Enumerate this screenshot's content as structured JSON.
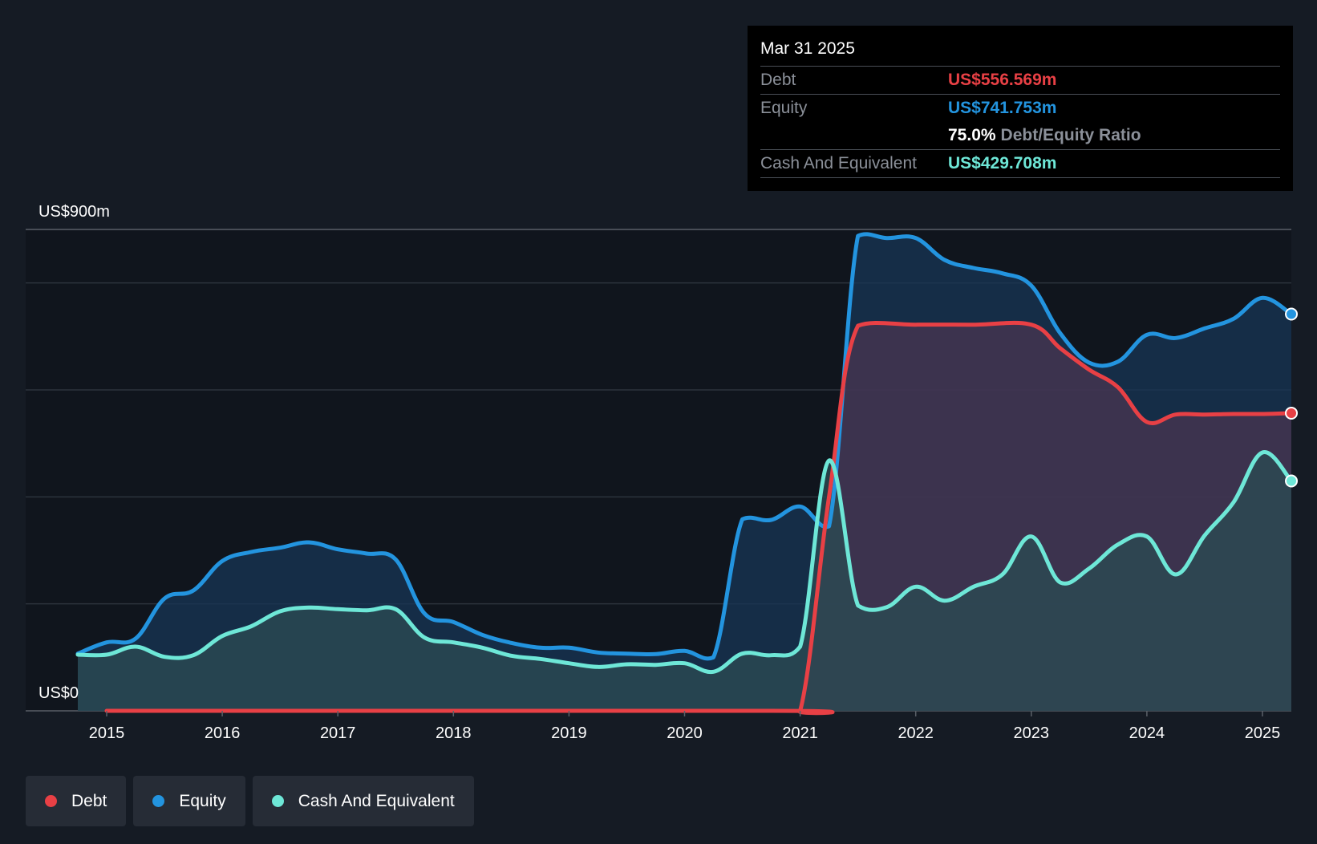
{
  "colors": {
    "background": "#151b24",
    "debt": "#e84045",
    "equity": "#2394df",
    "cash": "#6ee7d7"
  },
  "tooltip": {
    "date": "Mar 31 2025",
    "rows": [
      {
        "name": "Debt",
        "value": "US$556.569m"
      },
      {
        "name": "Equity",
        "value": "US$741.753m"
      }
    ],
    "ratio_value": "75.0%",
    "ratio_label": "Debt/Equity Ratio",
    "cash_name": "Cash And Equivalent",
    "cash_value": "US$429.708m"
  },
  "legend": [
    {
      "label": "Debt",
      "color": "#e84045"
    },
    {
      "label": "Equity",
      "color": "#2394df"
    },
    {
      "label": "Cash And Equivalent",
      "color": "#6ee7d7"
    }
  ],
  "chart_data": {
    "type": "area",
    "ylabel_top": "US$900m",
    "ylabel_bottom": "US$0",
    "ylim": [
      0,
      900
    ],
    "xlim": [
      2014.7,
      2025.25
    ],
    "x_ticks": [
      2015,
      2016,
      2017,
      2018,
      2019,
      2020,
      2021,
      2022,
      2023,
      2024,
      2025
    ],
    "x_tick_labels": [
      "2015",
      "2016",
      "2017",
      "2018",
      "2019",
      "2020",
      "2021",
      "2022",
      "2023",
      "2024",
      "2025"
    ],
    "gridlines": [
      0,
      200,
      400,
      600,
      800,
      900
    ],
    "series": [
      {
        "name": "Equity",
        "color": "#2394df",
        "points": [
          [
            2014.75,
            107
          ],
          [
            2015.0,
            128
          ],
          [
            2015.25,
            135
          ],
          [
            2015.5,
            210
          ],
          [
            2015.75,
            225
          ],
          [
            2016.0,
            280
          ],
          [
            2016.25,
            297
          ],
          [
            2016.5,
            305
          ],
          [
            2016.75,
            315
          ],
          [
            2017.0,
            302
          ],
          [
            2017.25,
            294
          ],
          [
            2017.5,
            283
          ],
          [
            2017.75,
            182
          ],
          [
            2018.0,
            166
          ],
          [
            2018.25,
            142
          ],
          [
            2018.5,
            127
          ],
          [
            2018.75,
            118
          ],
          [
            2019.0,
            118
          ],
          [
            2019.25,
            109
          ],
          [
            2019.5,
            107
          ],
          [
            2019.75,
            106
          ],
          [
            2020.0,
            112
          ],
          [
            2020.25,
            100
          ],
          [
            2020.5,
            358
          ],
          [
            2020.75,
            357
          ],
          [
            2021.0,
            382
          ],
          [
            2021.25,
            345
          ],
          [
            2021.5,
            888
          ],
          [
            2021.75,
            884
          ],
          [
            2022.0,
            884
          ],
          [
            2022.25,
            843
          ],
          [
            2022.5,
            828
          ],
          [
            2022.75,
            818
          ],
          [
            2023.0,
            795
          ],
          [
            2023.25,
            706
          ],
          [
            2023.5,
            651
          ],
          [
            2023.75,
            653
          ],
          [
            2024.0,
            703
          ],
          [
            2024.25,
            697
          ],
          [
            2024.5,
            715
          ],
          [
            2024.75,
            733
          ],
          [
            2025.0,
            772
          ],
          [
            2025.25,
            741.753
          ]
        ]
      },
      {
        "name": "Debt",
        "color": "#e84045",
        "points": [
          [
            2015.0,
            0
          ],
          [
            2020.75,
            0
          ],
          [
            2021.0,
            0
          ],
          [
            2021.25,
            400
          ],
          [
            2021.5,
            720
          ],
          [
            2022.0,
            722
          ],
          [
            2022.5,
            722
          ],
          [
            2023.0,
            722
          ],
          [
            2023.25,
            678
          ],
          [
            2023.5,
            638
          ],
          [
            2023.75,
            605
          ],
          [
            2024.0,
            540
          ],
          [
            2024.25,
            554
          ],
          [
            2024.5,
            554
          ],
          [
            2024.75,
            555
          ],
          [
            2025.0,
            555
          ],
          [
            2025.25,
            556.569
          ]
        ]
      },
      {
        "name": "Cash And Equivalent",
        "color": "#6ee7d7",
        "points": [
          [
            2014.75,
            105
          ],
          [
            2015.0,
            105
          ],
          [
            2015.25,
            120
          ],
          [
            2015.5,
            101
          ],
          [
            2015.75,
            104
          ],
          [
            2016.0,
            140
          ],
          [
            2016.25,
            158
          ],
          [
            2016.5,
            186
          ],
          [
            2016.75,
            193
          ],
          [
            2017.0,
            190
          ],
          [
            2017.25,
            188
          ],
          [
            2017.5,
            190
          ],
          [
            2017.75,
            137
          ],
          [
            2018.0,
            128
          ],
          [
            2018.25,
            118
          ],
          [
            2018.5,
            103
          ],
          [
            2018.75,
            97
          ],
          [
            2019.0,
            89
          ],
          [
            2019.25,
            82
          ],
          [
            2019.5,
            87
          ],
          [
            2019.75,
            86
          ],
          [
            2020.0,
            89
          ],
          [
            2020.25,
            73
          ],
          [
            2020.5,
            107
          ],
          [
            2020.75,
            104
          ],
          [
            2021.0,
            120
          ],
          [
            2021.25,
            468
          ],
          [
            2021.5,
            197
          ],
          [
            2021.75,
            194
          ],
          [
            2022.0,
            232
          ],
          [
            2022.25,
            206
          ],
          [
            2022.5,
            232
          ],
          [
            2022.75,
            255
          ],
          [
            2023.0,
            326
          ],
          [
            2023.25,
            240
          ],
          [
            2023.5,
            266
          ],
          [
            2023.75,
            311
          ],
          [
            2024.0,
            326
          ],
          [
            2024.25,
            255
          ],
          [
            2024.5,
            328
          ],
          [
            2024.75,
            390
          ],
          [
            2025.0,
            483
          ],
          [
            2025.25,
            429.708
          ]
        ]
      }
    ]
  }
}
